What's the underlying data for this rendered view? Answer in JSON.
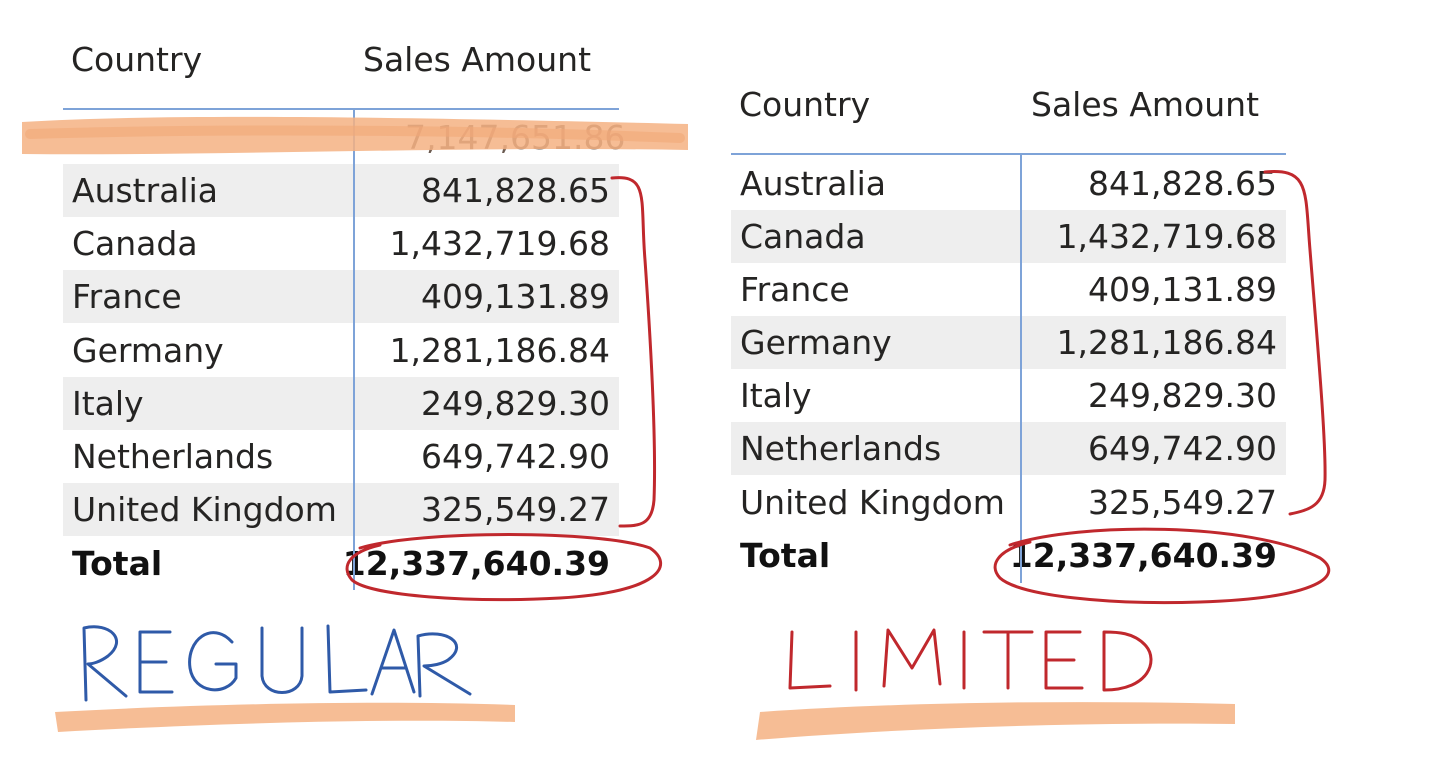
{
  "regular": {
    "headers": {
      "country": "Country",
      "sales": "Sales Amount"
    },
    "blank_row_value": "7,147,651.86",
    "rows": [
      {
        "country": "Australia",
        "sales": "841,828.65"
      },
      {
        "country": "Canada",
        "sales": "1,432,719.68"
      },
      {
        "country": "France",
        "sales": "409,131.89"
      },
      {
        "country": "Germany",
        "sales": "1,281,186.84"
      },
      {
        "country": "Italy",
        "sales": "249,829.30"
      },
      {
        "country": "Netherlands",
        "sales": "649,742.90"
      },
      {
        "country": "United Kingdom",
        "sales": "325,549.27"
      }
    ],
    "total": {
      "label": "Total",
      "sales": "12,337,640.39"
    },
    "handwritten_label": "REGULAR"
  },
  "limited": {
    "headers": {
      "country": "Country",
      "sales": "Sales Amount"
    },
    "rows": [
      {
        "country": "Australia",
        "sales": "841,828.65"
      },
      {
        "country": "Canada",
        "sales": "1,432,719.68"
      },
      {
        "country": "France",
        "sales": "409,131.89"
      },
      {
        "country": "Germany",
        "sales": "1,281,186.84"
      },
      {
        "country": "Italy",
        "sales": "249,829.30"
      },
      {
        "country": "Netherlands",
        "sales": "649,742.90"
      },
      {
        "country": "United Kingdom",
        "sales": "325,549.27"
      }
    ],
    "total": {
      "label": "Total",
      "sales": "12,337,640.39"
    },
    "handwritten_label": "LIMITED"
  },
  "colors": {
    "grid_line": "#7ea3d8",
    "band": "#eeeeee",
    "highlighter": "#f4b183",
    "red_ink": "#c0282d",
    "blue_ink": "#2f5aa8"
  }
}
